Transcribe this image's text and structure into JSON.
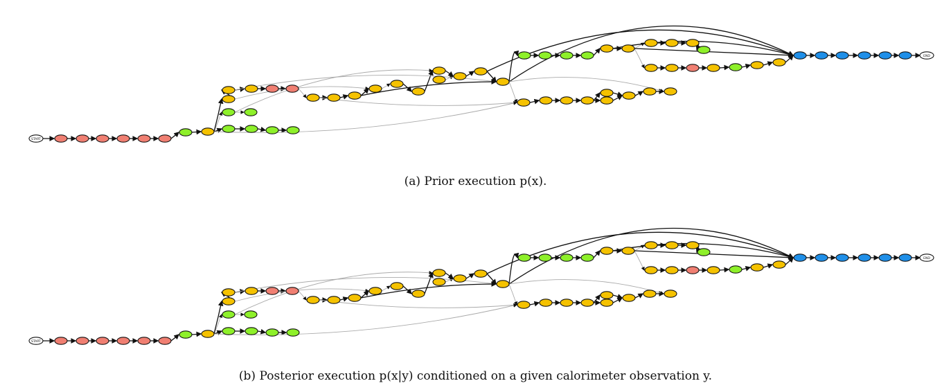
{
  "palette": {
    "red": "#f07f72",
    "orange": "#f5c200",
    "green": "#8ef02a",
    "blue": "#1f8fe8",
    "white": "#ffffff",
    "edge_dark": "#111111",
    "edge_light": "#aaaaaa"
  },
  "figures": [
    {
      "id": "a",
      "caption": "(a) Prior execution p(x).",
      "start_label": "START",
      "end_label": "END"
    },
    {
      "id": "b",
      "caption": "(b) Posterior execution p(x|y) conditioned on a given calorimeter observation y.",
      "start_label": "START",
      "end_label": "END"
    }
  ]
}
